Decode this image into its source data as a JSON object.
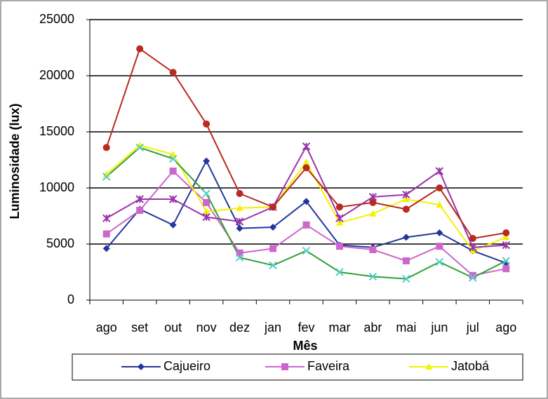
{
  "chart_data": {
    "type": "line",
    "x_label": "Mês",
    "y_label": "Luminosidade (lux)",
    "categories": [
      "ago",
      "set",
      "out",
      "nov",
      "dez",
      "jan",
      "fev",
      "mar",
      "abr",
      "mai",
      "jun",
      "jul",
      "ago"
    ],
    "ylim": [
      0,
      25000
    ],
    "yticks": [
      0,
      5000,
      10000,
      15000,
      20000,
      25000
    ],
    "grid": true,
    "legend": "bottom",
    "series": [
      {
        "name": "Cajueiro",
        "color": "#23379a",
        "marker": "diamond",
        "values": [
          4600,
          8100,
          6700,
          12400,
          6400,
          6500,
          8800,
          4900,
          4700,
          5600,
          6000,
          4400,
          3300
        ]
      },
      {
        "name": "Faveira",
        "color": "#cc66cc",
        "marker": "square",
        "values": [
          5900,
          8000,
          11500,
          8700,
          4200,
          4600,
          6700,
          4800,
          4500,
          3500,
          4800,
          2200,
          2800
        ]
      },
      {
        "name": "Jatobá",
        "color": "#f2f200",
        "marker": "triangle",
        "values": [
          11200,
          13800,
          13000,
          7900,
          8200,
          8300,
          12300,
          6900,
          7700,
          9000,
          8500,
          4400,
          5600
        ]
      },
      {
        "color": "#33a033",
        "marker_color": "#55cccc",
        "marker": "x",
        "values": [
          11000,
          13600,
          12600,
          9500,
          3800,
          3100,
          4400,
          2500,
          2100,
          1900,
          3400,
          2000,
          3500
        ]
      },
      {
        "color": "#9933aa",
        "marker": "star",
        "values": [
          7300,
          9000,
          9000,
          7400,
          7000,
          8300,
          13700,
          7300,
          9200,
          9400,
          11500,
          4700,
          4900
        ]
      },
      {
        "color": "#b82a22",
        "marker": "circle",
        "values": [
          13600,
          22400,
          20300,
          15700,
          9500,
          8300,
          11800,
          8300,
          8700,
          8100,
          10000,
          5500,
          6000
        ]
      }
    ]
  }
}
